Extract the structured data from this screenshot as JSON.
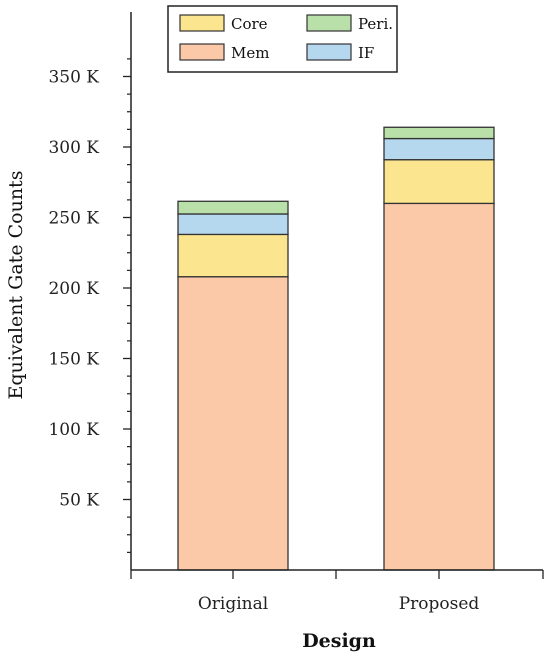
{
  "chart_data": {
    "type": "bar",
    "stacked": true,
    "title": "",
    "xlabel": "Design",
    "ylabel": "Equivalent Gate Counts",
    "categories": [
      "Original",
      "Proposed"
    ],
    "ylim": [
      0,
      375000
    ],
    "yticks": [
      {
        "value": 50000,
        "label": "50 K"
      },
      {
        "value": 100000,
        "label": "100 K"
      },
      {
        "value": 150000,
        "label": "150 K"
      },
      {
        "value": 200000,
        "label": "200 K"
      },
      {
        "value": 250000,
        "label": "250 K"
      },
      {
        "value": 300000,
        "label": "300 K"
      },
      {
        "value": 350000,
        "label": "350 K"
      }
    ],
    "minor_tick_step": 12500,
    "grid": false,
    "legend_position": "top-center",
    "series": [
      {
        "name": "Mem",
        "color": "#FBC9A8",
        "values": [
          208000,
          260000
        ]
      },
      {
        "name": "Core",
        "color": "#FBE58E",
        "values": [
          30000,
          31000
        ]
      },
      {
        "name": "IF",
        "color": "#B6D8EE",
        "values": [
          14500,
          15000
        ]
      },
      {
        "name": "Peri.",
        "color": "#B8E0A8",
        "values": [
          9000,
          8000
        ]
      }
    ],
    "legend_order": [
      "Core",
      "Peri.",
      "Mem",
      "IF"
    ]
  }
}
